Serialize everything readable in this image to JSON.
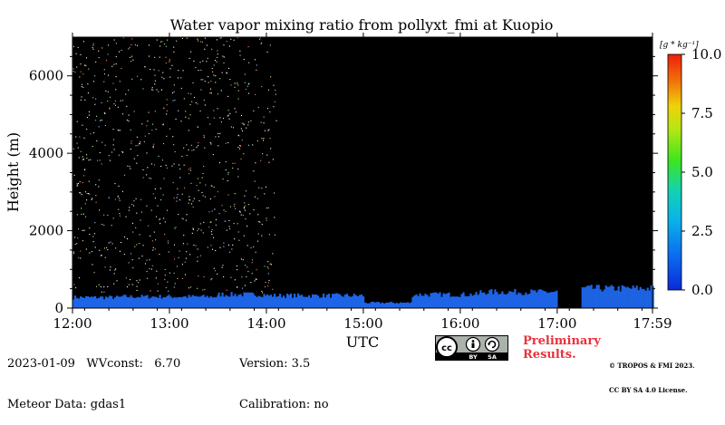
{
  "chart_data": {
    "type": "heatmap",
    "title": "Water vapor mixing ratio from pollyxt_fmi at Kuopio",
    "xlabel": "UTC",
    "ylabel": "Height (m)",
    "x_tick_labels": [
      "12:00",
      "13:00",
      "14:00",
      "15:00",
      "16:00",
      "17:00",
      "17:59"
    ],
    "x_tick_hours": [
      12,
      13,
      14,
      15,
      16,
      17,
      17.983
    ],
    "xlim_hours": [
      12,
      17.983
    ],
    "y_ticks": [
      0,
      2000,
      4000,
      6000
    ],
    "ylim": [
      0,
      7000
    ],
    "colorbar": {
      "label": "[g * kg⁻¹]",
      "range": [
        0,
        10
      ],
      "ticks": [
        "0.0",
        "2.5",
        "5.0",
        "7.5",
        "10.0"
      ],
      "tick_values": [
        0,
        2.5,
        5,
        7.5,
        10
      ],
      "colormap": "jet"
    },
    "background_color": "#000000",
    "near_surface_layer": [
      {
        "start_hour": 12.0,
        "end_hour": 12.5,
        "top_height_m": 300,
        "value": 1.2
      },
      {
        "start_hour": 12.5,
        "end_hour": 13.5,
        "top_height_m": 320,
        "value": 1.2
      },
      {
        "start_hour": 13.5,
        "end_hour": 14.0,
        "top_height_m": 380,
        "value": 1.2
      },
      {
        "start_hour": 14.0,
        "end_hour": 15.0,
        "top_height_m": 350,
        "value": 1.1
      },
      {
        "start_hour": 15.0,
        "end_hour": 15.5,
        "top_height_m": 150,
        "value": 1.0
      },
      {
        "start_hour": 15.5,
        "end_hour": 16.2,
        "top_height_m": 380,
        "value": 1.0
      },
      {
        "start_hour": 16.2,
        "end_hour": 17.0,
        "top_height_m": 450,
        "value": 1.0
      },
      {
        "start_hour": 17.25,
        "end_hour": 17.983,
        "top_height_m": 550,
        "value": 1.0
      }
    ],
    "no_data_gap": {
      "start_hour": 17.08,
      "end_hour": 17.25,
      "top_height_m": 500
    },
    "noise_region": {
      "start_hour": 12.0,
      "end_hour": 14.1,
      "bottom_m": 400,
      "top_m": 7000
    }
  },
  "footer": {
    "date": "2023-01-09",
    "wvconst_label": "WVconst:",
    "wvconst_value": "6.70",
    "meteor": "Meteor Data: gdas1",
    "version": "Version: 3.5",
    "calibration": "Calibration: no",
    "preliminary_line1": "Preliminary",
    "preliminary_line2": "Results.",
    "copyright_line1": "© TROPOS & FMI 2023.",
    "copyright_line2": "CC BY SA 4.0 License.",
    "cc_text": "cc",
    "by_text": "BY",
    "sa_text": "SA"
  },
  "colors": {
    "layer_blue": "#1e64e6",
    "noise_white": "#ffffff",
    "preliminary_red": "#e8323c"
  },
  "icons": [
    "cc-by-sa-license-icon"
  ]
}
